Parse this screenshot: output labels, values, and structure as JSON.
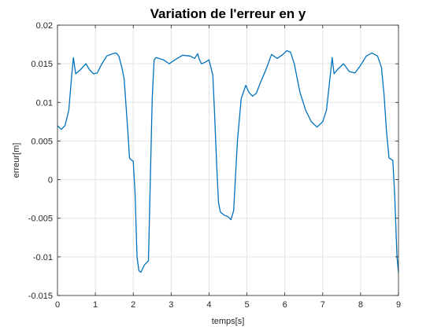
{
  "chart_data": {
    "type": "line",
    "title": "Variation de l'erreur en y",
    "xlabel": "temps[s]",
    "ylabel": "erreur[m]",
    "xlim": [
      0,
      9
    ],
    "ylim": [
      -0.015,
      0.02
    ],
    "xticks": [
      0,
      1,
      2,
      3,
      4,
      5,
      6,
      7,
      8,
      9
    ],
    "xtick_labels": [
      "0",
      "1",
      "2",
      "3",
      "4",
      "5",
      "6",
      "7",
      "8",
      "9"
    ],
    "yticks": [
      -0.015,
      -0.01,
      -0.005,
      0,
      0.005,
      0.01,
      0.015,
      0.02
    ],
    "ytick_labels": [
      "-0.015",
      "-0.01",
      "-0.005",
      "0",
      "0.005",
      "0.01",
      "0.015",
      "0.02"
    ],
    "grid": true,
    "line_color": "#0072BD",
    "series": [
      {
        "x": [
          0,
          0.1,
          0.2,
          0.3,
          0.38,
          0.42,
          0.48,
          0.6,
          0.75,
          0.85,
          0.95,
          1.05,
          1.15,
          1.3,
          1.45,
          1.55,
          1.62,
          1.7,
          1.76,
          1.8,
          1.86,
          1.9,
          1.96,
          2.0,
          2.05,
          2.1,
          2.15,
          2.2,
          2.3,
          2.4,
          2.45,
          2.5,
          2.55,
          2.6,
          2.8,
          2.95,
          3.1,
          3.3,
          3.5,
          3.62,
          3.7,
          3.75,
          3.8,
          3.9,
          4.0,
          4.1,
          4.15,
          4.2,
          4.25,
          4.3,
          4.4,
          4.5,
          4.58,
          4.65,
          4.75,
          4.85,
          4.92,
          4.97,
          5.05,
          5.15,
          5.25,
          5.35,
          5.5,
          5.65,
          5.8,
          5.95,
          6.05,
          6.15,
          6.25,
          6.4,
          6.55,
          6.7,
          6.85,
          7.0,
          7.1,
          7.2,
          7.25,
          7.3,
          7.4,
          7.55,
          7.7,
          7.85,
          8.0,
          8.15,
          8.3,
          8.45,
          8.55,
          8.62,
          8.68,
          8.75,
          8.85,
          8.9,
          8.96,
          9.0
        ],
        "y": [
          0.007,
          0.0065,
          0.007,
          0.009,
          0.0138,
          0.0158,
          0.0137,
          0.0142,
          0.015,
          0.0142,
          0.0137,
          0.0138,
          0.0148,
          0.016,
          0.0163,
          0.0164,
          0.016,
          0.0145,
          0.013,
          0.0102,
          0.006,
          0.0028,
          0.0025,
          0.0024,
          -0.002,
          -0.01,
          -0.0118,
          -0.012,
          -0.011,
          -0.0105,
          0.0,
          0.0105,
          0.0155,
          0.0158,
          0.0155,
          0.015,
          0.0155,
          0.0161,
          0.016,
          0.0157,
          0.0163,
          0.0155,
          0.015,
          0.0152,
          0.0155,
          0.0135,
          0.008,
          0.002,
          -0.003,
          -0.0042,
          -0.0046,
          -0.0048,
          -0.0052,
          -0.004,
          0.005,
          0.0105,
          0.0115,
          0.0122,
          0.0113,
          0.0108,
          0.0112,
          0.0125,
          0.0142,
          0.0162,
          0.0157,
          0.0162,
          0.0167,
          0.0165,
          0.015,
          0.0113,
          0.009,
          0.0075,
          0.0068,
          0.0075,
          0.009,
          0.0135,
          0.0158,
          0.0137,
          0.0143,
          0.015,
          0.014,
          0.0138,
          0.0148,
          0.016,
          0.0164,
          0.016,
          0.0145,
          0.011,
          0.0065,
          0.0028,
          0.0025,
          -0.002,
          -0.01,
          -0.012
        ]
      }
    ]
  }
}
